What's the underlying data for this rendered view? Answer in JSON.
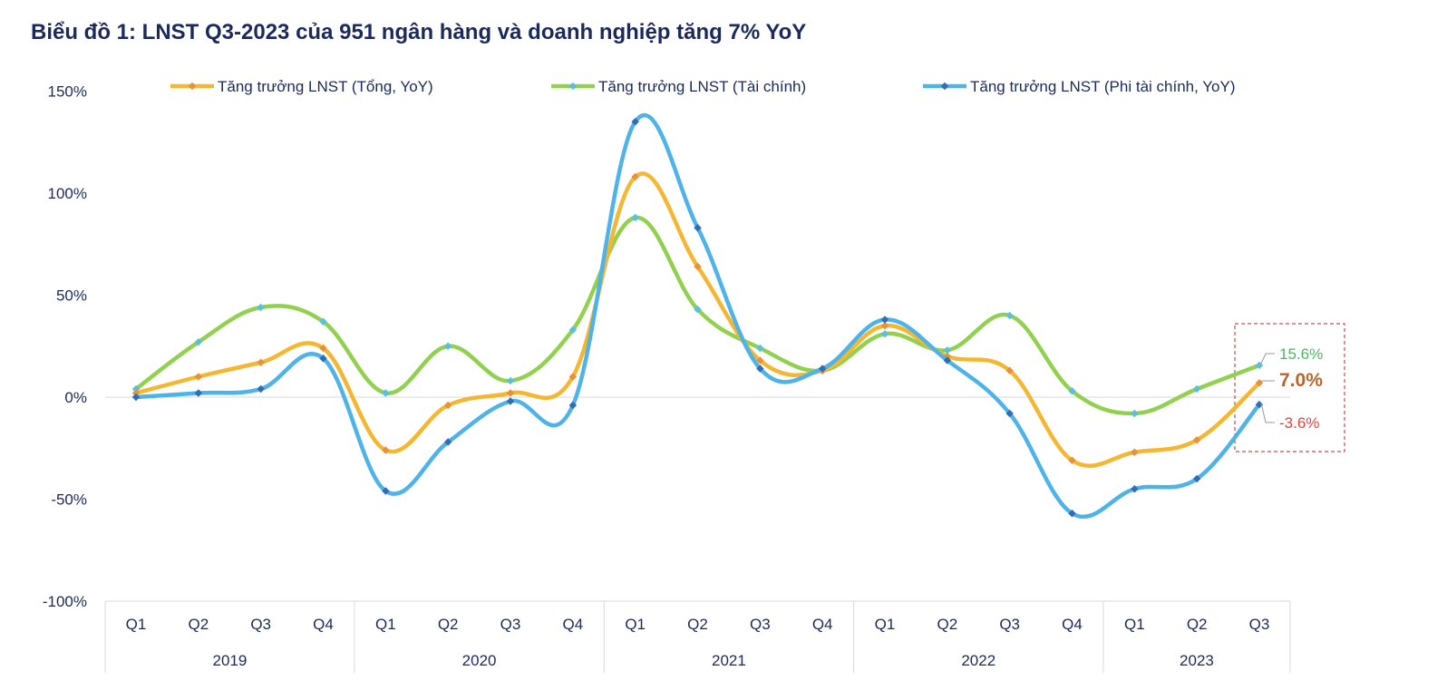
{
  "chart_data": {
    "type": "line",
    "title": "Biểu đồ 1: LNST Q3-2023 của 951 ngân hàng và doanh nghiệp tăng 7% YoY",
    "xlabel": "",
    "ylabel": "",
    "ylim": [
      -100,
      150
    ],
    "yticks": [
      150,
      100,
      50,
      0,
      -50,
      -100
    ],
    "ytick_labels": [
      "150%",
      "100%",
      "50%",
      "0%",
      "-50%",
      "-100%"
    ],
    "categories": [
      "Q1",
      "Q2",
      "Q3",
      "Q4",
      "Q1",
      "Q2",
      "Q3",
      "Q4",
      "Q1",
      "Q2",
      "Q3",
      "Q4",
      "Q1",
      "Q2",
      "Q3",
      "Q4",
      "Q1",
      "Q2",
      "Q3"
    ],
    "groups": [
      {
        "label": "2019",
        "count": 4
      },
      {
        "label": "2020",
        "count": 4
      },
      {
        "label": "2021",
        "count": 4
      },
      {
        "label": "2022",
        "count": 4
      },
      {
        "label": "2023",
        "count": 3
      }
    ],
    "legend_position": "top",
    "grid": false,
    "series": [
      {
        "name": "Tăng trưởng LNST (Tổng, YoY)",
        "color": "#F5B731",
        "marker_color": "#E8913A",
        "values": [
          2,
          10,
          17,
          24,
          -26,
          -4,
          2,
          10,
          108,
          64,
          18,
          13,
          35,
          20,
          13,
          -31,
          -27,
          -21,
          7.0
        ]
      },
      {
        "name": "Tăng trưởng LNST (Tài chính)",
        "color": "#92D050",
        "marker_color": "#5BC0DE",
        "values": [
          4,
          27,
          44,
          37,
          2,
          25,
          8,
          33,
          88,
          43,
          24,
          13,
          31,
          23,
          40,
          3,
          -8,
          4,
          15.6
        ]
      },
      {
        "name": "Tăng trưởng LNST (Phi tài chính, YoY)",
        "color": "#4EB3E8",
        "marker_color": "#2F6DB5",
        "values": [
          0,
          2,
          4,
          19,
          -46,
          -22,
          -2,
          -4,
          135,
          83,
          14,
          14,
          38,
          18,
          -8,
          -57,
          -45,
          -40,
          -3.6
        ]
      }
    ],
    "annotations": [
      {
        "text": "15.6%",
        "color": "#4CB860"
      },
      {
        "text": "7.0%",
        "color": "#B8652A"
      },
      {
        "text": "-3.6%",
        "color": "#E8403A"
      }
    ],
    "highlight_box_color": "#C0504D"
  }
}
